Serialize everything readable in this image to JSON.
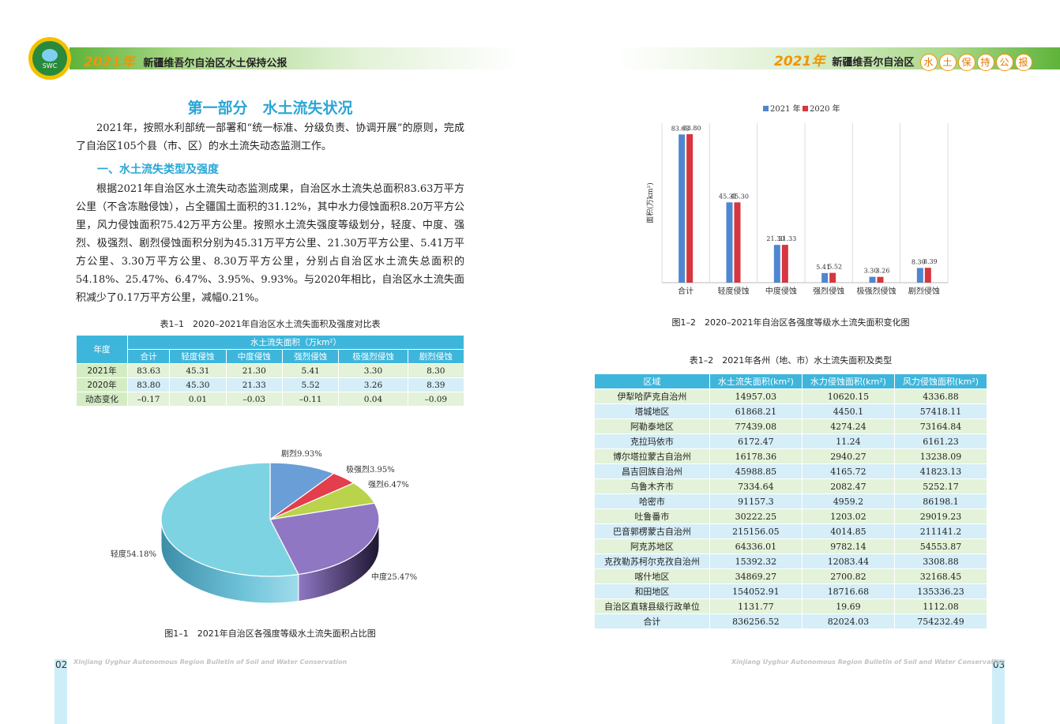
{
  "header": {
    "year": "2021年",
    "left_title": "新疆维吾尔自治区水土保持公报",
    "right_title": "新疆维吾尔自治区",
    "right_chars": [
      "水",
      "土",
      "保",
      "持",
      "公",
      "报"
    ],
    "logo_text": "SWC"
  },
  "left_page": {
    "title": "第一部分　水土流失状况",
    "intro": "2021年，按照水利部统一部署和“统一标准、分级负责、协调开展”的原则，完成了自治区105个县（市、区）的水土流失动态监测工作。",
    "section": "一、水土流失类型及强度",
    "body": "根据2021年自治区水土流失动态监测成果，自治区水土流失总面积83.63万平方公里（不含冻融侵蚀），占全疆国土面积的31.12%，其中水力侵蚀面积8.20万平方公里，风力侵蚀面积75.42万平方公里。按照水土流失强度等级划分，轻度、中度、强烈、极强烈、剧烈侵蚀面积分别为45.31万平方公里、21.30万平方公里、5.41万平方公里、3.30万平方公里、8.30万平方公里，分别占自治区水土流失总面积的54.18%、25.47%、6.47%、3.95%、9.93%。与2020年相比，自治区水土流失面积减少了0.17万平方公里，减幅0.21%。",
    "table1": {
      "caption": "表1–1　2020–2021年自治区水土流失面积及强度对比表",
      "corner": "年度",
      "group_header": "水土流失面积（万km²）",
      "columns": [
        "合计",
        "轻度侵蚀",
        "中度侵蚀",
        "强烈侵蚀",
        "极强烈侵蚀",
        "剧烈侵蚀"
      ],
      "rows": [
        {
          "label": "2021年",
          "values": [
            "83.63",
            "45.31",
            "21.30",
            "5.41",
            "3.30",
            "8.30"
          ]
        },
        {
          "label": "2020年",
          "values": [
            "83.80",
            "45.30",
            "21.33",
            "5.52",
            "3.26",
            "8.39"
          ]
        },
        {
          "label": "动态变化",
          "values": [
            "–0.17",
            "0.01",
            "–0.03",
            "–0.11",
            "0.04",
            "–0.09"
          ]
        }
      ]
    },
    "pie_caption": "图1–1　2021年自治区各强度等级水土流失面积占比图",
    "page_number": "02",
    "footer": "Xinjiang Uyghur Autonomous Region Bulletin of Soil and Water Conservation"
  },
  "chart_data": [
    {
      "type": "pie",
      "labels": [
        "轻度",
        "中度",
        "强烈",
        "极强烈",
        "剧烈"
      ],
      "label_text": [
        "轻度54.18%",
        "中度25.47%",
        "强烈6.47%",
        "极强烈3.95%",
        "剧烈9.93%"
      ],
      "values": [
        54.18,
        25.47,
        6.47,
        3.95,
        9.93
      ],
      "colors": [
        "#7ed3e2",
        "#8f77c4",
        "#b9d34a",
        "#e33e4c",
        "#6a9ed6"
      ]
    },
    {
      "type": "bar",
      "categories": [
        "合计",
        "轻度侵蚀",
        "中度侵蚀",
        "强烈侵蚀",
        "极强烈侵蚀",
        "剧烈侵蚀"
      ],
      "series": [
        {
          "name": "2021 年",
          "values": [
            83.63,
            45.31,
            21.3,
            5.41,
            3.3,
            8.3
          ],
          "color": "#4f86cf"
        },
        {
          "name": "2020 年",
          "values": [
            83.8,
            45.3,
            21.33,
            5.52,
            3.26,
            8.39
          ],
          "color": "#d6363f"
        }
      ],
      "value_labels": {
        "2021 年": [
          "83.63",
          "45.31",
          "21.30",
          "5.41",
          "3.30",
          "8.30"
        ],
        "2020 年": [
          "83.80",
          "45.30",
          "21.33",
          "5.52",
          "3.26",
          "8.39"
        ]
      },
      "ylabel": "面积(万km²)",
      "ylim": [
        0,
        90
      ],
      "legend": "top",
      "grid": "vertical"
    }
  ],
  "right_page": {
    "bar_caption": "图1–2　2020–2021年自治区各强度等级水土流失面积变化图",
    "table2": {
      "caption": "表1–2　2021年各州（地、市）水土流失面积及类型",
      "columns": [
        "区域",
        "水土流失面积(km²)",
        "水力侵蚀面积(km²)",
        "风力侵蚀面积(km²)"
      ],
      "rows": [
        [
          "伊犁哈萨克自治州",
          "14957.03",
          "10620.15",
          "4336.88"
        ],
        [
          "塔城地区",
          "61868.21",
          "4450.1",
          "57418.11"
        ],
        [
          "阿勒泰地区",
          "77439.08",
          "4274.24",
          "73164.84"
        ],
        [
          "克拉玛依市",
          "6172.47",
          "11.24",
          "6161.23"
        ],
        [
          "博尔塔拉蒙古自治州",
          "16178.36",
          "2940.27",
          "13238.09"
        ],
        [
          "昌吉回族自治州",
          "45988.85",
          "4165.72",
          "41823.13"
        ],
        [
          "乌鲁木齐市",
          "7334.64",
          "2082.47",
          "5252.17"
        ],
        [
          "哈密市",
          "91157.3",
          "4959.2",
          "86198.1"
        ],
        [
          "吐鲁番市",
          "30222.25",
          "1203.02",
          "29019.23"
        ],
        [
          "巴音郭楞蒙古自治州",
          "215156.05",
          "4014.85",
          "211141.2"
        ],
        [
          "阿克苏地区",
          "64336.01",
          "9782.14",
          "54553.87"
        ],
        [
          "克孜勒苏柯尔克孜自治州",
          "15392.32",
          "12083.44",
          "3308.88"
        ],
        [
          "喀什地区",
          "34869.27",
          "2700.82",
          "32168.45"
        ],
        [
          "和田地区",
          "154052.91",
          "18716.68",
          "135336.23"
        ],
        [
          "自治区直辖县级行政单位",
          "1131.77",
          "19.69",
          "1112.08"
        ],
        [
          "合计",
          "836256.52",
          "82024.03",
          "754232.49"
        ]
      ]
    },
    "page_number": "03",
    "footer": "Xinjiang Uyghur Autonomous Region Bulletin of Soil and Water Conservation"
  }
}
